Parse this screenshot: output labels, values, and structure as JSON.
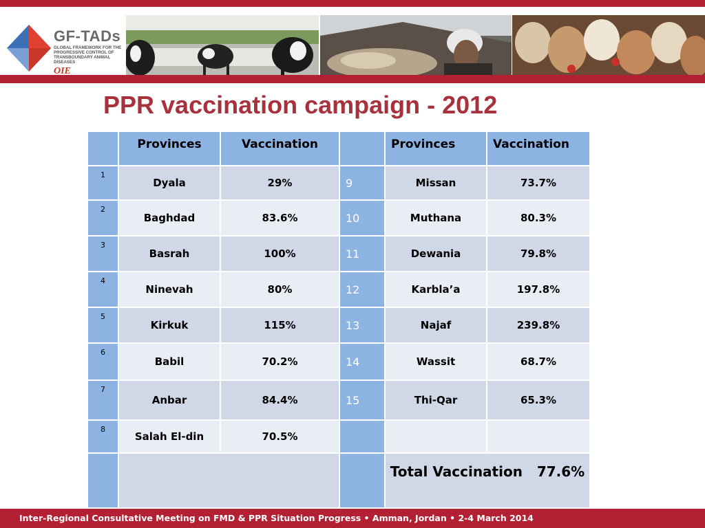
{
  "header": {
    "logo_title": "GF-TADs",
    "logo_subtitle": "GLOBAL FRAMEWORK FOR THE PROGRESSIVE CONTROL OF TRANSBOUNDARY ANIMAL DISEASES",
    "logo_orgs": "OIE"
  },
  "slide": {
    "title": "PPR vaccination campaign - 2012"
  },
  "table": {
    "header": {
      "provinces_left": "Provinces",
      "vaccination_left": "Vaccination",
      "provinces_right": "Provinces",
      "vaccination_right": "Vaccination"
    },
    "left_rows": [
      {
        "index": "1",
        "province": "Dyala",
        "vaccination": "29%"
      },
      {
        "index": "2",
        "province": "Baghdad",
        "vaccination": "83.6%"
      },
      {
        "index": "3",
        "province": "Basrah",
        "vaccination": "100%"
      },
      {
        "index": "4",
        "province": "Ninevah",
        "vaccination": "80%"
      },
      {
        "index": "5",
        "province": "Kirkuk",
        "vaccination": "115%"
      },
      {
        "index": "6",
        "province": "Babil",
        "vaccination": "70.2%"
      },
      {
        "index": "7",
        "province": "Anbar",
        "vaccination": "84.4%"
      },
      {
        "index": "8",
        "province": "Salah El-din",
        "vaccination": "70.5%"
      }
    ],
    "right_rows": [
      {
        "index": "9",
        "province": "Missan",
        "vaccination": "73.7%"
      },
      {
        "index": "10",
        "province": "Muthana",
        "vaccination": "80.3%"
      },
      {
        "index": "11",
        "province": "Dewania",
        "vaccination": "79.8%"
      },
      {
        "index": "12",
        "province": "Karbla’a",
        "vaccination": "197.8%"
      },
      {
        "index": "13",
        "province": "Najaf",
        "vaccination": "239.8%"
      },
      {
        "index": "14",
        "province": "Wassit",
        "vaccination": "68.7%"
      },
      {
        "index": "15",
        "province": "Thi-Qar",
        "vaccination": "65.3%"
      }
    ],
    "total": "Total Vaccination   77.6%"
  },
  "footer": {
    "text": "Inter-Regional Consultative Meeting on FMD & PPR Situation Progress  •  Amman, Jordan  •  2-4 March 2014"
  },
  "colors": {
    "accent_red": "#b31f33",
    "title_red": "#a8313e",
    "header_blue": "#8db3e2",
    "row_dark": "#d0d8e8",
    "row_light": "#e9edf4"
  }
}
